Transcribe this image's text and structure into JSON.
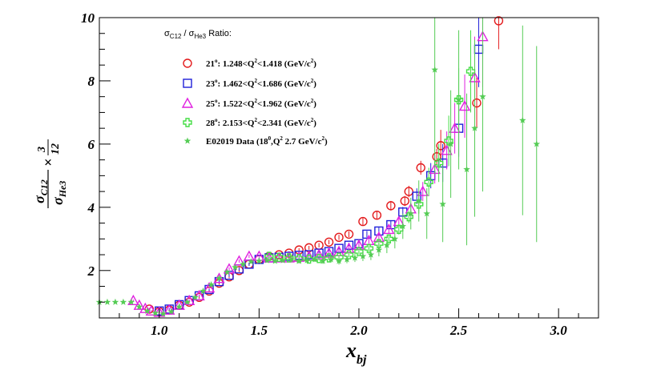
{
  "chart_data": {
    "type": "scatter",
    "xlabel": "x",
    "xlabel_sub": "bj",
    "ylabel_num": "σ",
    "ylabel_num_sub": "C12",
    "ylabel_den": "σ",
    "ylabel_den_sub": "He3",
    "ylabel_times": "×",
    "ylabel_frac_num": "3",
    "ylabel_frac_den": "12",
    "xlim": [
      0.7,
      3.2
    ],
    "ylim": [
      0.5,
      10
    ],
    "xticks": [
      {
        "v": 1.0,
        "label": "1.0"
      },
      {
        "v": 1.5,
        "label": "1.5"
      },
      {
        "v": 2.0,
        "label": "2.0"
      },
      {
        "v": 2.5,
        "label": "2.5"
      },
      {
        "v": 3.0,
        "label": "3.0"
      }
    ],
    "yticks": [
      {
        "v": 2,
        "label": "2"
      },
      {
        "v": 4,
        "label": "4"
      },
      {
        "v": 6,
        "label": "6"
      },
      {
        "v": 8,
        "label": "8"
      },
      {
        "v": 10,
        "label": "10"
      }
    ],
    "legend": {
      "title": "σC12 / σHe3 Ratio:",
      "title_parts": {
        "s1": "σ",
        "sub1": "C12",
        "sep": " / ",
        "s2": "σ",
        "sub2": "He3",
        "tail": " Ratio:"
      }
    },
    "series": [
      {
        "name": "21°: 1.248<Q²<1.418 (GeV/c²)",
        "legend_parts": {
          "angle": "21",
          "deg": "o",
          "a": ": 1.248<Q",
          "sq": "2",
          "b": "<1.418 (GeV/c",
          "sq2": "2",
          "c": ")"
        },
        "marker": "circle",
        "color": "#e31a1c",
        "points": [
          [
            0.95,
            0.78,
            0.03
          ],
          [
            1.0,
            0.7,
            0.03
          ],
          [
            1.05,
            0.75,
            0.03
          ],
          [
            1.1,
            0.9,
            0.03
          ],
          [
            1.15,
            1.0,
            0.03
          ],
          [
            1.2,
            1.15,
            0.04
          ],
          [
            1.25,
            1.35,
            0.04
          ],
          [
            1.3,
            1.6,
            0.05
          ],
          [
            1.35,
            1.8,
            0.05
          ],
          [
            1.4,
            2.0,
            0.05
          ],
          [
            1.45,
            2.2,
            0.05
          ],
          [
            1.5,
            2.35,
            0.05
          ],
          [
            1.55,
            2.45,
            0.05
          ],
          [
            1.6,
            2.5,
            0.05
          ],
          [
            1.65,
            2.55,
            0.06
          ],
          [
            1.7,
            2.65,
            0.06
          ],
          [
            1.75,
            2.72,
            0.06
          ],
          [
            1.8,
            2.8,
            0.07
          ],
          [
            1.85,
            2.9,
            0.07
          ],
          [
            1.9,
            3.05,
            0.08
          ],
          [
            1.95,
            3.15,
            0.09
          ],
          [
            2.02,
            3.55,
            0.12
          ],
          [
            2.09,
            3.75,
            0.13
          ],
          [
            2.16,
            4.05,
            0.15
          ],
          [
            2.23,
            4.2,
            0.16
          ],
          [
            2.25,
            4.5,
            0.18
          ],
          [
            2.31,
            5.25,
            0.22
          ],
          [
            2.39,
            5.6,
            0.25
          ],
          [
            2.41,
            5.95,
            0.5
          ],
          [
            2.59,
            7.3,
            0.8
          ],
          [
            2.7,
            9.9,
            0.9
          ]
        ]
      },
      {
        "name": "23°: 1.462<Q²<1.686 (GeV/c²)",
        "legend_parts": {
          "angle": "23",
          "deg": "o",
          "a": ": 1.462<Q",
          "sq": "2",
          "b": "<1.686 (GeV/c",
          "sq2": "2",
          "c": ")"
        },
        "marker": "square",
        "color": "#1f1fd9",
        "points": [
          [
            1.0,
            0.72,
            0.03
          ],
          [
            1.05,
            0.78,
            0.03
          ],
          [
            1.1,
            0.92,
            0.03
          ],
          [
            1.15,
            1.05,
            0.03
          ],
          [
            1.2,
            1.2,
            0.04
          ],
          [
            1.25,
            1.4,
            0.04
          ],
          [
            1.3,
            1.65,
            0.05
          ],
          [
            1.35,
            1.85,
            0.05
          ],
          [
            1.4,
            2.05,
            0.05
          ],
          [
            1.45,
            2.2,
            0.05
          ],
          [
            1.5,
            2.35,
            0.05
          ],
          [
            1.55,
            2.4,
            0.05
          ],
          [
            1.6,
            2.42,
            0.05
          ],
          [
            1.65,
            2.45,
            0.05
          ],
          [
            1.7,
            2.48,
            0.06
          ],
          [
            1.75,
            2.5,
            0.06
          ],
          [
            1.8,
            2.55,
            0.06
          ],
          [
            1.85,
            2.6,
            0.07
          ],
          [
            1.9,
            2.7,
            0.07
          ],
          [
            1.95,
            2.8,
            0.08
          ],
          [
            2.0,
            2.85,
            0.09
          ],
          [
            2.04,
            3.15,
            0.1
          ],
          [
            2.1,
            3.25,
            0.11
          ],
          [
            2.16,
            3.45,
            0.13
          ],
          [
            2.22,
            3.85,
            0.16
          ],
          [
            2.29,
            4.35,
            0.25
          ],
          [
            2.36,
            5.0,
            0.4
          ],
          [
            2.42,
            5.4,
            0.6
          ],
          [
            2.5,
            6.5,
            0.9
          ],
          [
            2.6,
            9.0,
            1.2
          ]
        ]
      },
      {
        "name": "25°: 1.522<Q²<1.962 (GeV/c²)",
        "legend_parts": {
          "angle": "25",
          "deg": "o",
          "a": ": 1.522<Q",
          "sq": "2",
          "b": "<1.962 (GeV/c",
          "sq2": "2",
          "c": ")"
        },
        "marker": "triangle",
        "color": "#e020e0",
        "points": [
          [
            0.87,
            1.05,
            0.03
          ],
          [
            0.9,
            0.9,
            0.03
          ],
          [
            0.93,
            0.8,
            0.03
          ],
          [
            0.96,
            0.72,
            0.03
          ],
          [
            1.0,
            0.68,
            0.03
          ],
          [
            1.05,
            0.75,
            0.03
          ],
          [
            1.1,
            0.9,
            0.03
          ],
          [
            1.15,
            1.05,
            0.03
          ],
          [
            1.2,
            1.2,
            0.04
          ],
          [
            1.25,
            1.45,
            0.04
          ],
          [
            1.3,
            1.75,
            0.05
          ],
          [
            1.35,
            2.05,
            0.05
          ],
          [
            1.4,
            2.3,
            0.05
          ],
          [
            1.45,
            2.45,
            0.05
          ],
          [
            1.5,
            2.45,
            0.05
          ],
          [
            1.55,
            2.4,
            0.05
          ],
          [
            1.6,
            2.4,
            0.05
          ],
          [
            1.65,
            2.4,
            0.05
          ],
          [
            1.7,
            2.42,
            0.06
          ],
          [
            1.75,
            2.45,
            0.06
          ],
          [
            1.8,
            2.5,
            0.06
          ],
          [
            1.85,
            2.55,
            0.07
          ],
          [
            1.9,
            2.6,
            0.07
          ],
          [
            1.95,
            2.7,
            0.08
          ],
          [
            2.0,
            2.8,
            0.09
          ],
          [
            2.05,
            2.95,
            0.1
          ],
          [
            2.1,
            3.05,
            0.11
          ],
          [
            2.15,
            3.3,
            0.13
          ],
          [
            2.2,
            3.55,
            0.16
          ],
          [
            2.26,
            3.95,
            0.2
          ],
          [
            2.32,
            4.5,
            0.3
          ],
          [
            2.38,
            5.2,
            0.45
          ],
          [
            2.44,
            5.8,
            0.6
          ],
          [
            2.48,
            6.5,
            0.8
          ],
          [
            2.53,
            7.2,
            1.0
          ],
          [
            2.58,
            8.1,
            1.3
          ],
          [
            2.62,
            9.4,
            1.6
          ]
        ]
      },
      {
        "name": "28°: 2.153<Q²<2.341 (GeV/c²)",
        "legend_parts": {
          "angle": "28",
          "deg": "o",
          "a": ": 2.153<Q",
          "sq": "2",
          "b": "<2.341 (GeV/c",
          "sq2": "2",
          "c": ")"
        },
        "marker": "cross",
        "color": "#44dd44",
        "points": [
          [
            1.55,
            2.45,
            0.05
          ],
          [
            1.6,
            2.42,
            0.05
          ],
          [
            1.65,
            2.4,
            0.05
          ],
          [
            1.7,
            2.38,
            0.06
          ],
          [
            1.75,
            2.36,
            0.06
          ],
          [
            1.8,
            2.38,
            0.06
          ],
          [
            1.85,
            2.4,
            0.07
          ],
          [
            1.9,
            2.42,
            0.07
          ],
          [
            1.95,
            2.5,
            0.08
          ],
          [
            2.0,
            2.6,
            0.09
          ],
          [
            2.05,
            2.7,
            0.1
          ],
          [
            2.1,
            2.85,
            0.11
          ],
          [
            2.15,
            3.0,
            0.13
          ],
          [
            2.2,
            3.3,
            0.16
          ],
          [
            2.25,
            3.7,
            0.2
          ],
          [
            2.3,
            4.1,
            0.3
          ],
          [
            2.35,
            4.8,
            0.45
          ],
          [
            2.4,
            5.4,
            0.6
          ],
          [
            2.45,
            6.1,
            0.8
          ],
          [
            2.5,
            7.4,
            1.0
          ],
          [
            2.56,
            8.3,
            1.3
          ]
        ]
      },
      {
        "name": "E02019 Data (18°,Q² 2.7 GeV/c²)",
        "legend_parts": {
          "a": "E02019 Data (18",
          "deg": "0",
          "b": ",Q",
          "sq": "2",
          "c": " 2.7 GeV/c",
          "sq2": "2",
          "d": ")"
        },
        "marker": "star",
        "color": "#55cc55",
        "points": [
          [
            0.7,
            1.0,
            0.0
          ],
          [
            0.74,
            1.0,
            0.0
          ],
          [
            0.78,
            1.0,
            0.0
          ],
          [
            0.82,
            1.0,
            0.0
          ],
          [
            0.86,
            1.0,
            0.0
          ],
          [
            0.9,
            0.85,
            0.02
          ],
          [
            0.94,
            0.72,
            0.02
          ],
          [
            0.98,
            0.65,
            0.02
          ],
          [
            1.02,
            0.63,
            0.02
          ],
          [
            1.06,
            0.7,
            0.02
          ],
          [
            1.1,
            0.85,
            0.02
          ],
          [
            1.14,
            1.0,
            0.03
          ],
          [
            1.18,
            1.15,
            0.03
          ],
          [
            1.22,
            1.35,
            0.03
          ],
          [
            1.26,
            1.55,
            0.04
          ],
          [
            1.3,
            1.75,
            0.04
          ],
          [
            1.34,
            1.95,
            0.05
          ],
          [
            1.38,
            2.1,
            0.05
          ],
          [
            1.42,
            2.2,
            0.05
          ],
          [
            1.46,
            2.28,
            0.05
          ],
          [
            1.5,
            2.3,
            0.05
          ],
          [
            1.54,
            2.32,
            0.06
          ],
          [
            1.58,
            2.3,
            0.06
          ],
          [
            1.62,
            2.32,
            0.06
          ],
          [
            1.66,
            2.35,
            0.07
          ],
          [
            1.7,
            2.3,
            0.07
          ],
          [
            1.74,
            2.32,
            0.08
          ],
          [
            1.78,
            2.35,
            0.08
          ],
          [
            1.82,
            2.3,
            0.09
          ],
          [
            1.86,
            2.35,
            0.1
          ],
          [
            1.9,
            2.3,
            0.11
          ],
          [
            1.94,
            2.35,
            0.12
          ],
          [
            1.98,
            2.4,
            0.13
          ],
          [
            2.02,
            2.45,
            0.15
          ],
          [
            2.06,
            2.5,
            0.17
          ],
          [
            2.1,
            2.65,
            0.2
          ],
          [
            2.14,
            2.8,
            0.25
          ],
          [
            2.18,
            3.0,
            0.3
          ],
          [
            2.22,
            3.4,
            0.4
          ],
          [
            2.26,
            3.8,
            0.5
          ],
          [
            2.3,
            4.2,
            0.65
          ],
          [
            2.34,
            3.8,
            0.8
          ],
          [
            2.38,
            8.35,
            3.3
          ],
          [
            2.42,
            4.1,
            1.2
          ],
          [
            2.46,
            6.0,
            1.7
          ],
          [
            2.5,
            7.4,
            2.2
          ],
          [
            2.54,
            5.2,
            2.4
          ],
          [
            2.58,
            6.5,
            2.8
          ],
          [
            2.62,
            7.5,
            3.0
          ],
          [
            2.82,
            6.75,
            3.0
          ],
          [
            2.89,
            6.0,
            3.1
          ]
        ]
      }
    ]
  }
}
